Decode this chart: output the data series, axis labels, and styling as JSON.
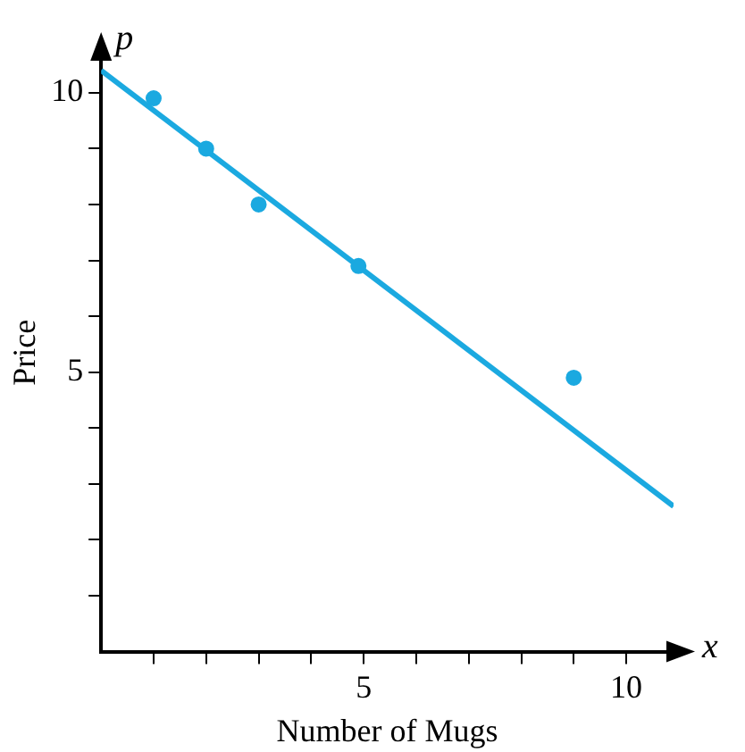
{
  "chart_data": {
    "type": "scatter",
    "xlabel": "Number of Mugs",
    "ylabel": "Price",
    "annotations": [
      "p",
      "x"
    ],
    "xlim": [
      0,
      10.9
    ],
    "ylim": [
      0,
      10.7
    ],
    "xticks": [
      {
        "value": 1,
        "label": null
      },
      {
        "value": 2,
        "label": null
      },
      {
        "value": 3,
        "label": null
      },
      {
        "value": 4,
        "label": null
      },
      5,
      {
        "value": 6,
        "label": null
      },
      {
        "value": 7,
        "label": null
      },
      {
        "value": 8,
        "label": null
      },
      {
        "value": 9,
        "label": null
      },
      10
    ],
    "yticks": [
      {
        "value": 1,
        "label": null
      },
      {
        "value": 2,
        "label": null
      },
      {
        "value": 3,
        "label": null
      },
      {
        "value": 4,
        "label": null
      },
      5,
      {
        "value": 6,
        "label": null
      },
      {
        "value": 7,
        "label": null
      },
      {
        "value": 8,
        "label": null
      },
      {
        "value": 9,
        "label": null
      },
      10
    ],
    "grid": false,
    "legend": false,
    "marker": "circle",
    "series": [
      {
        "color": "#1ba9e0",
        "x": [
          1,
          2,
          3,
          4.9,
          9
        ],
        "values": [
          9.9,
          9.0,
          8.0,
          6.9,
          4.9
        ]
      },
      {
        "type": "line",
        "color": "#1ba9e0",
        "x": [
          0,
          10.9
        ],
        "values": [
          10.4,
          2.6
        ],
        "marker": "none"
      }
    ]
  }
}
